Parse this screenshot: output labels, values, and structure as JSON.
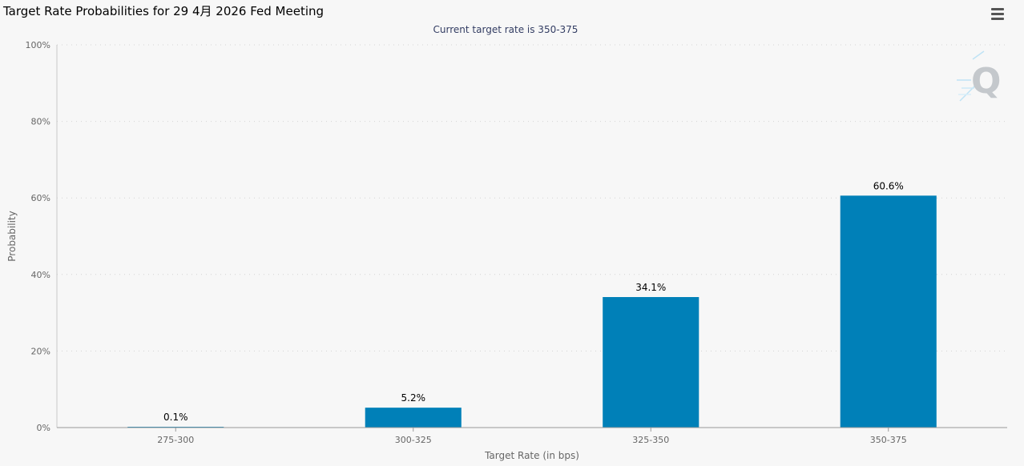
{
  "chart_data": {
    "type": "bar",
    "title": "Target Rate Probabilities for 29 4月 2026 Fed Meeting",
    "subtitle": "Current target rate is 350-375",
    "xlabel": "Target Rate (in bps)",
    "ylabel": "Probability",
    "categories": [
      "275-300",
      "300-325",
      "325-350",
      "350-375"
    ],
    "values": [
      0.1,
      5.2,
      34.1,
      60.6
    ],
    "data_labels": [
      "0.1%",
      "5.2%",
      "34.1%",
      "60.6%"
    ],
    "ylim": [
      0,
      100
    ],
    "y_ticks": [
      0,
      20,
      40,
      60,
      80,
      100
    ],
    "y_tick_labels": [
      "0%",
      "20%",
      "40%",
      "60%",
      "80%",
      "100%"
    ],
    "grid": true,
    "legend": "none",
    "bar_color": "#0080b8",
    "watermark_icon": "q-logo-icon",
    "menu_icon": "hamburger-menu-icon"
  }
}
